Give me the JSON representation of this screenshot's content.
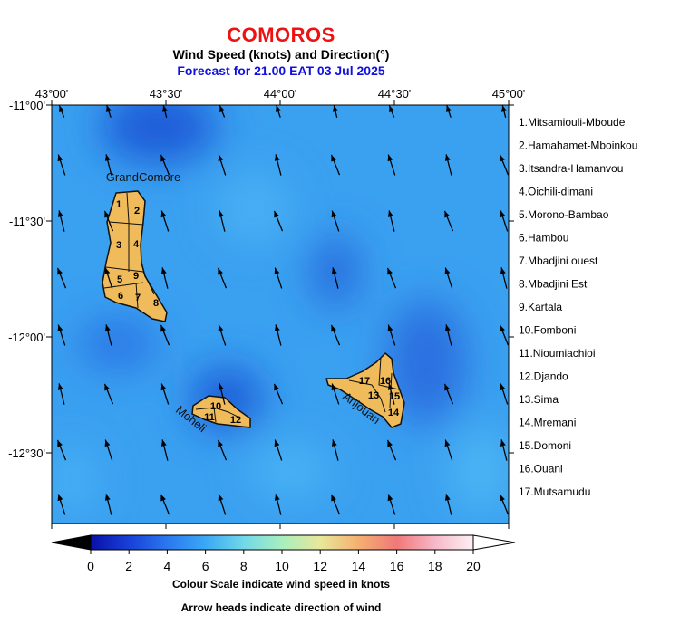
{
  "header": {
    "title": "COMOROS",
    "subtitle": "Wind Speed (knots) and Direction(°)",
    "forecast": "Forecast for  21.00 EAT 03 Jul 2025"
  },
  "axes": {
    "x_ticks": [
      "43°00'",
      "43°30'",
      "44°00'",
      "44°30'",
      "45°00'"
    ],
    "y_ticks": [
      "-11°00'",
      "-11°30'",
      "-12°00'",
      "-12°30'"
    ]
  },
  "islands": {
    "grande_comore": "GrandComore",
    "moheli": "Moheli",
    "anjouan": "Anjouan",
    "region_numbers": [
      "1",
      "2",
      "3",
      "4",
      "5",
      "6",
      "7",
      "8",
      "9",
      "10",
      "11",
      "12",
      "13",
      "14",
      "15",
      "16",
      "17"
    ]
  },
  "regions": [
    "1.Mitsamiouli-Mboude",
    "2.Hamahamet-Mboinkou",
    "3.Itsandra-Hamanvou",
    "4.Oichili-dimani",
    "5.Morono-Bambao",
    "6.Hambou",
    "7.Mbadjini ouest",
    "8.Mbadjini Est",
    "9.Kartala",
    "10.Fomboni",
    "11.Nioumiachioi",
    "12.Djando",
    "13.Sima",
    "14.Mremani",
    "15.Domoni",
    "16.Ouani",
    "17.Mutsamudu"
  ],
  "colorbar": {
    "ticks": [
      "0",
      "2",
      "4",
      "6",
      "8",
      "10",
      "12",
      "14",
      "16",
      "18",
      "20"
    ],
    "caption1": "Colour Scale indicate wind speed in knots",
    "caption2": "Arrow heads indicate direction of wind"
  },
  "wind_field": {
    "general_direction": "from south-southeast",
    "speed_range_knots": [
      3,
      7
    ]
  },
  "colors": {
    "title": "#ee1111",
    "forecast": "#1010e0",
    "land": "#f0bb5a",
    "sea_background": "#3aa0f0"
  }
}
